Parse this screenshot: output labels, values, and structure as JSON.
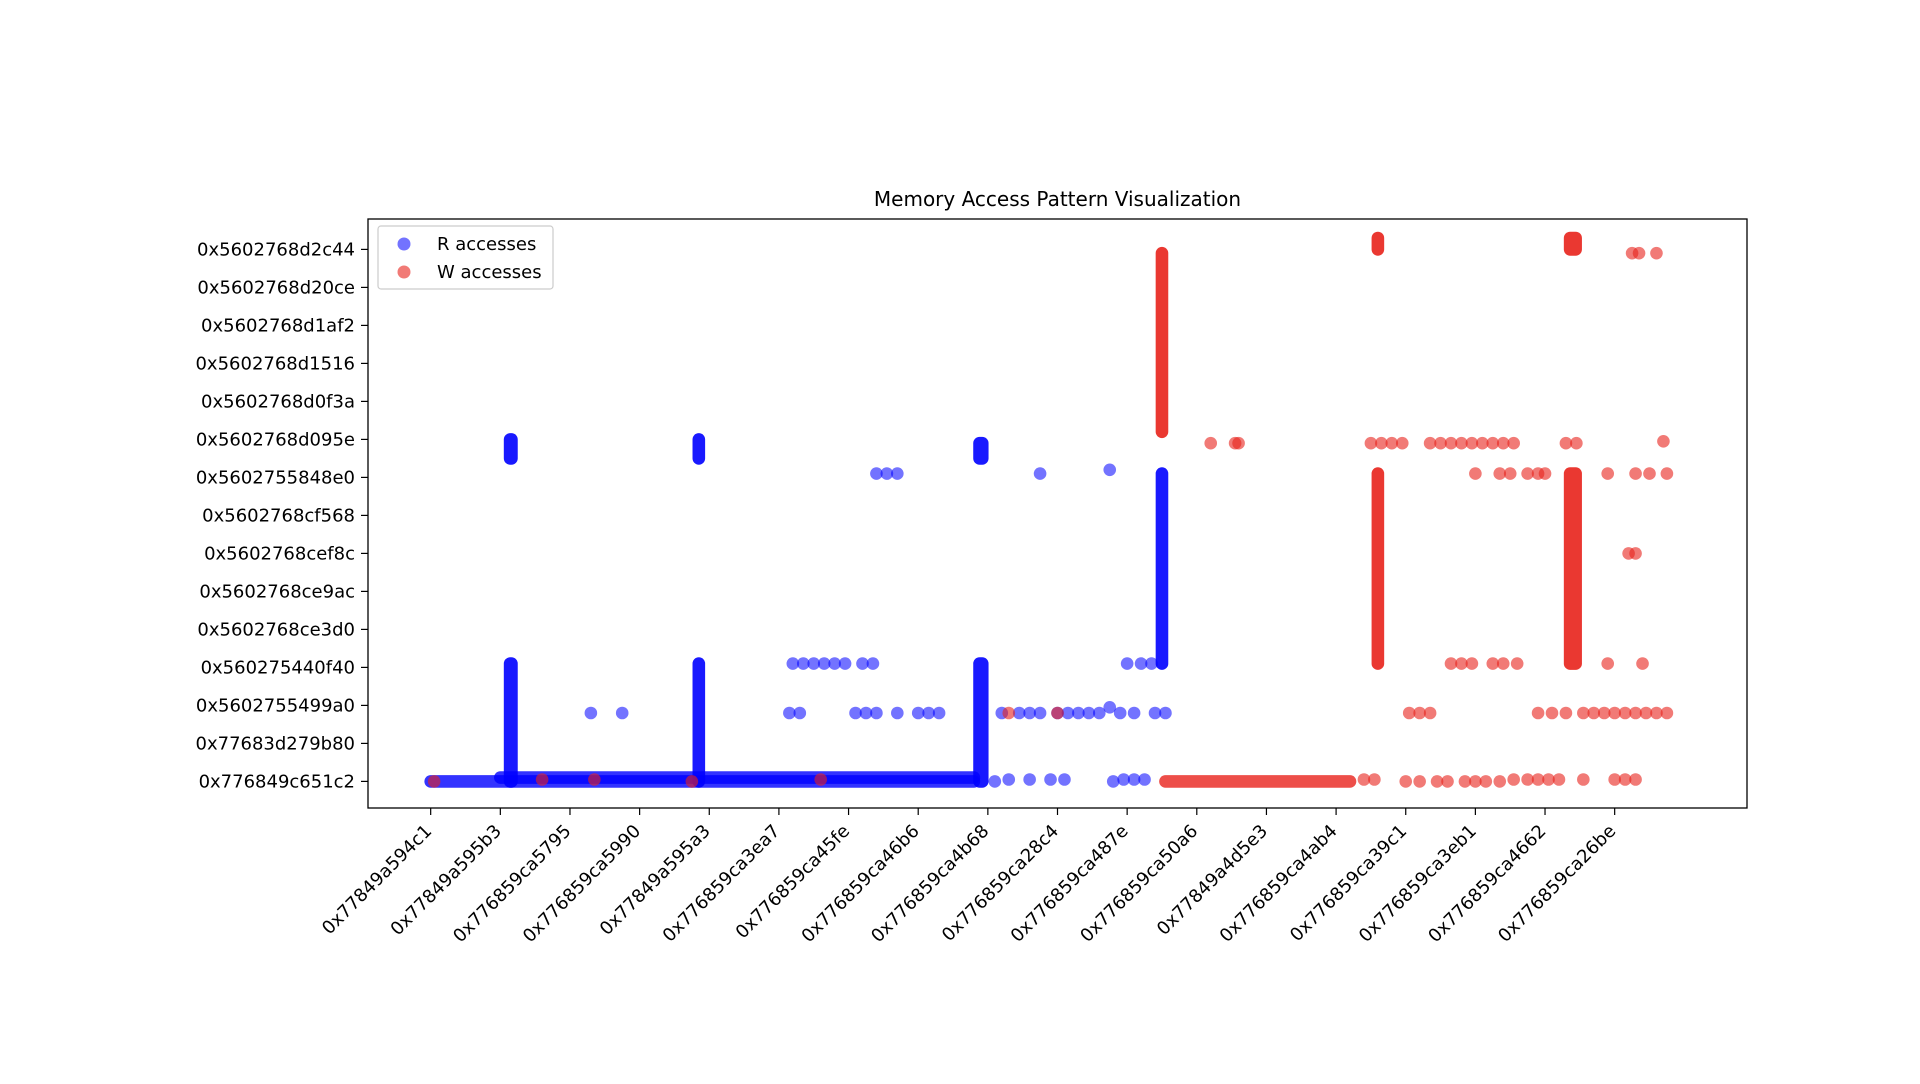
{
  "chart_data": {
    "type": "scatter",
    "title": "Memory Access Pattern Visualization",
    "xlabel": "",
    "ylabel": "",
    "grid": false,
    "legend_position": "top-left",
    "x_categories": [
      "0x77849a594c1",
      "0x77849a595b3",
      "0x776859ca5795",
      "0x776859ca5990",
      "0x77849a595a3",
      "0x776859ca3ea7",
      "0x776859ca45fe",
      "0x776859ca46b6",
      "0x776859ca4b68",
      "0x776859ca28c4",
      "0x776859ca487e",
      "0x776859ca50a6",
      "0x77849a4d5e3",
      "0x776859ca4ab4",
      "0x776859ca39c1",
      "0x776859ca3eb1",
      "0x776859ca4662",
      "0x776859ca26be"
    ],
    "y_categories": [
      "0x776849c651c2",
      "0x77683d279b80",
      "0x5602755499a0",
      "0x560275440f40",
      "0x5602768ce3d0",
      "0x5602768ce9ac",
      "0x5602768cef8c",
      "0x5602768cf568",
      "0x5602755848e0",
      "0x5602768d095e",
      "0x5602768d0f3a",
      "0x5602768d1516",
      "0x5602768d1af2",
      "0x5602768d20ce",
      "0x5602768d2c44"
    ],
    "x_range": [
      -0.9,
      18.9
    ],
    "y_range": [
      -0.7,
      14.8
    ],
    "series": [
      {
        "name": "R accesses",
        "color": "#0000ff",
        "rows": [
          {
            "y": 0.0,
            "x_from": 0.0,
            "x_to": 7.8
          },
          {
            "y": 0.1,
            "x_from": 1.0,
            "x_to": 7.8
          }
        ],
        "columns": [
          {
            "x": 1.15,
            "y_from": 0.0,
            "y_to": 3.1,
            "width": 0.2
          },
          {
            "x": 1.15,
            "y_from": 8.5,
            "y_to": 9.0,
            "width": 0.2
          },
          {
            "x": 3.85,
            "y_from": 0.0,
            "y_to": 3.1,
            "width": 0.12
          },
          {
            "x": 3.85,
            "y_from": 8.5,
            "y_to": 9.0,
            "width": 0.12
          },
          {
            "x": 7.9,
            "y_from": 0.0,
            "y_to": 3.1,
            "width": 0.22
          },
          {
            "x": 7.9,
            "y_from": 8.5,
            "y_to": 8.9,
            "width": 0.22
          },
          {
            "x": 10.5,
            "y_from": 3.1,
            "y_to": 8.1,
            "width": 0.12
          }
        ],
        "points": [
          {
            "x": 2.3,
            "y": 1.8
          },
          {
            "x": 2.75,
            "y": 1.8
          },
          {
            "x": 5.2,
            "y": 3.1
          },
          {
            "x": 5.35,
            "y": 3.1
          },
          {
            "x": 5.5,
            "y": 3.1
          },
          {
            "x": 5.65,
            "y": 3.1
          },
          {
            "x": 5.8,
            "y": 3.1
          },
          {
            "x": 5.95,
            "y": 3.1
          },
          {
            "x": 6.2,
            "y": 3.1
          },
          {
            "x": 6.35,
            "y": 3.1
          },
          {
            "x": 5.15,
            "y": 1.8
          },
          {
            "x": 5.3,
            "y": 1.8
          },
          {
            "x": 6.1,
            "y": 1.8
          },
          {
            "x": 6.25,
            "y": 1.8
          },
          {
            "x": 6.4,
            "y": 1.8
          },
          {
            "x": 6.7,
            "y": 1.8
          },
          {
            "x": 7.0,
            "y": 1.8
          },
          {
            "x": 7.15,
            "y": 1.8
          },
          {
            "x": 7.3,
            "y": 1.8
          },
          {
            "x": 6.4,
            "y": 8.1
          },
          {
            "x": 6.55,
            "y": 8.1
          },
          {
            "x": 6.7,
            "y": 8.1
          },
          {
            "x": 8.75,
            "y": 8.1
          },
          {
            "x": 9.75,
            "y": 8.2
          },
          {
            "x": 8.2,
            "y": 1.8
          },
          {
            "x": 8.45,
            "y": 1.8
          },
          {
            "x": 8.6,
            "y": 1.8
          },
          {
            "x": 8.75,
            "y": 1.8
          },
          {
            "x": 9.0,
            "y": 1.8
          },
          {
            "x": 9.15,
            "y": 1.8
          },
          {
            "x": 9.3,
            "y": 1.8
          },
          {
            "x": 9.45,
            "y": 1.8
          },
          {
            "x": 9.6,
            "y": 1.8
          },
          {
            "x": 9.75,
            "y": 1.95
          },
          {
            "x": 9.9,
            "y": 1.8
          },
          {
            "x": 10.1,
            "y": 1.8
          },
          {
            "x": 10.4,
            "y": 1.8
          },
          {
            "x": 10.55,
            "y": 1.8
          },
          {
            "x": 8.1,
            "y": 0.0
          },
          {
            "x": 8.3,
            "y": 0.05
          },
          {
            "x": 8.6,
            "y": 0.05
          },
          {
            "x": 8.9,
            "y": 0.05
          },
          {
            "x": 9.1,
            "y": 0.05
          },
          {
            "x": 9.8,
            "y": 0.0
          },
          {
            "x": 9.95,
            "y": 0.05
          },
          {
            "x": 10.1,
            "y": 0.05
          },
          {
            "x": 10.25,
            "y": 0.05
          },
          {
            "x": 10.0,
            "y": 3.1
          },
          {
            "x": 10.2,
            "y": 3.1
          },
          {
            "x": 10.35,
            "y": 3.1
          }
        ]
      },
      {
        "name": "W accesses",
        "color": "#e8221b",
        "rows": [
          {
            "y": 0.0,
            "x_from": 10.55,
            "x_to": 13.2
          }
        ],
        "columns": [
          {
            "x": 10.5,
            "y_from": 9.2,
            "y_to": 13.9,
            "width": 0.12
          },
          {
            "x": 13.6,
            "y_from": 3.1,
            "y_to": 8.1,
            "width": 0.16
          },
          {
            "x": 13.6,
            "y_from": 14.0,
            "y_to": 14.3,
            "width": 0.16
          },
          {
            "x": 16.4,
            "y_from": 3.1,
            "y_to": 8.1,
            "width": 0.26
          },
          {
            "x": 16.4,
            "y_from": 14.0,
            "y_to": 14.3,
            "width": 0.26
          }
        ],
        "points": [
          {
            "x": 0.05,
            "y": 0.0
          },
          {
            "x": 1.6,
            "y": 0.05
          },
          {
            "x": 2.35,
            "y": 0.05
          },
          {
            "x": 3.75,
            "y": 0.0
          },
          {
            "x": 5.6,
            "y": 0.05
          },
          {
            "x": 8.3,
            "y": 1.8
          },
          {
            "x": 9.0,
            "y": 1.8
          },
          {
            "x": 11.2,
            "y": 8.9
          },
          {
            "x": 11.55,
            "y": 8.9
          },
          {
            "x": 11.6,
            "y": 8.9
          },
          {
            "x": 13.5,
            "y": 8.9
          },
          {
            "x": 13.65,
            "y": 8.9
          },
          {
            "x": 13.8,
            "y": 8.9
          },
          {
            "x": 13.95,
            "y": 8.9
          },
          {
            "x": 14.35,
            "y": 8.9
          },
          {
            "x": 14.5,
            "y": 8.9
          },
          {
            "x": 14.65,
            "y": 8.9
          },
          {
            "x": 14.8,
            "y": 8.9
          },
          {
            "x": 14.95,
            "y": 8.9
          },
          {
            "x": 15.1,
            "y": 8.9
          },
          {
            "x": 15.25,
            "y": 8.9
          },
          {
            "x": 15.4,
            "y": 8.9
          },
          {
            "x": 15.55,
            "y": 8.9
          },
          {
            "x": 16.3,
            "y": 8.9
          },
          {
            "x": 16.45,
            "y": 8.9
          },
          {
            "x": 17.7,
            "y": 8.95
          },
          {
            "x": 15.0,
            "y": 8.1
          },
          {
            "x": 15.35,
            "y": 8.1
          },
          {
            "x": 15.5,
            "y": 8.1
          },
          {
            "x": 15.75,
            "y": 8.1
          },
          {
            "x": 15.9,
            "y": 8.1
          },
          {
            "x": 16.0,
            "y": 8.1
          },
          {
            "x": 16.9,
            "y": 8.1
          },
          {
            "x": 17.3,
            "y": 8.1
          },
          {
            "x": 17.5,
            "y": 8.1
          },
          {
            "x": 17.75,
            "y": 8.1
          },
          {
            "x": 17.2,
            "y": 6.0
          },
          {
            "x": 17.3,
            "y": 6.0
          },
          {
            "x": 17.25,
            "y": 13.9
          },
          {
            "x": 17.35,
            "y": 13.9
          },
          {
            "x": 17.6,
            "y": 13.9
          },
          {
            "x": 14.65,
            "y": 3.1
          },
          {
            "x": 14.8,
            "y": 3.1
          },
          {
            "x": 14.95,
            "y": 3.1
          },
          {
            "x": 15.25,
            "y": 3.1
          },
          {
            "x": 15.4,
            "y": 3.1
          },
          {
            "x": 15.6,
            "y": 3.1
          },
          {
            "x": 16.9,
            "y": 3.1
          },
          {
            "x": 17.4,
            "y": 3.1
          },
          {
            "x": 14.05,
            "y": 1.8
          },
          {
            "x": 14.2,
            "y": 1.8
          },
          {
            "x": 14.35,
            "y": 1.8
          },
          {
            "x": 15.9,
            "y": 1.8
          },
          {
            "x": 16.1,
            "y": 1.8
          },
          {
            "x": 16.3,
            "y": 1.8
          },
          {
            "x": 16.55,
            "y": 1.8
          },
          {
            "x": 16.7,
            "y": 1.8
          },
          {
            "x": 16.85,
            "y": 1.8
          },
          {
            "x": 17.0,
            "y": 1.8
          },
          {
            "x": 17.15,
            "y": 1.8
          },
          {
            "x": 17.3,
            "y": 1.8
          },
          {
            "x": 17.45,
            "y": 1.8
          },
          {
            "x": 17.6,
            "y": 1.8
          },
          {
            "x": 17.75,
            "y": 1.8
          },
          {
            "x": 13.4,
            "y": 0.05
          },
          {
            "x": 13.55,
            "y": 0.05
          },
          {
            "x": 14.0,
            "y": 0.0
          },
          {
            "x": 14.2,
            "y": 0.0
          },
          {
            "x": 14.45,
            "y": 0.0
          },
          {
            "x": 14.6,
            "y": 0.0
          },
          {
            "x": 14.85,
            "y": 0.0
          },
          {
            "x": 15.0,
            "y": 0.0
          },
          {
            "x": 15.15,
            "y": 0.0
          },
          {
            "x": 15.35,
            "y": 0.0
          },
          {
            "x": 15.55,
            "y": 0.05
          },
          {
            "x": 15.75,
            "y": 0.05
          },
          {
            "x": 15.9,
            "y": 0.05
          },
          {
            "x": 16.05,
            "y": 0.05
          },
          {
            "x": 16.2,
            "y": 0.05
          },
          {
            "x": 16.55,
            "y": 0.05
          },
          {
            "x": 17.0,
            "y": 0.05
          },
          {
            "x": 17.15,
            "y": 0.05
          },
          {
            "x": 17.3,
            "y": 0.05
          }
        ]
      }
    ]
  }
}
